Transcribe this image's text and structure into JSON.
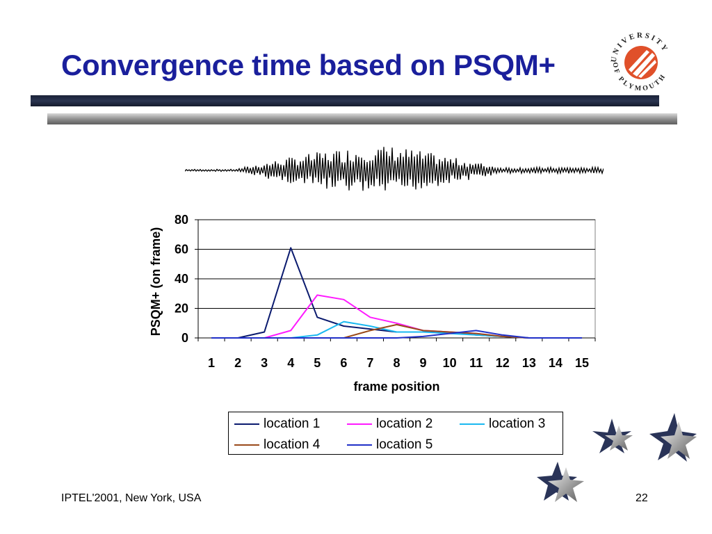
{
  "slide": {
    "title": "Convergence time based on PSQM+",
    "footer_left": "IPTEL'2001, New York, USA",
    "page_number": "22"
  },
  "logo": {
    "text": "UNIVERSITY OF PLYMOUTH",
    "color": "#e0502a"
  },
  "colors": {
    "title": "#1a1f9c",
    "location_1": "#0a1a6e",
    "location_2": "#ff1aff",
    "location_3": "#1ab8f0",
    "location_4": "#9a4a1a",
    "location_5": "#2030c8"
  },
  "chart_data": {
    "type": "line",
    "xlabel": "frame position",
    "ylabel": "PSQM+ (on frame)",
    "ylim": [
      0,
      80
    ],
    "yticks": [
      0,
      20,
      40,
      60,
      80
    ],
    "grid": true,
    "legend_position": "bottom",
    "categories": [
      "1",
      "2",
      "3",
      "4",
      "5",
      "6",
      "7",
      "8",
      "9",
      "10",
      "11",
      "12",
      "13",
      "14",
      "15"
    ],
    "series": [
      {
        "name": "location 1",
        "color": "#0a1a6e",
        "values": [
          0,
          0,
          4,
          61,
          14,
          8,
          6,
          4,
          4,
          4,
          2,
          1,
          0,
          0,
          0
        ]
      },
      {
        "name": "location 2",
        "color": "#ff1aff",
        "values": [
          0,
          0,
          0,
          5,
          29,
          26,
          14,
          10,
          5,
          4,
          3,
          1,
          0,
          0,
          0
        ]
      },
      {
        "name": "location 3",
        "color": "#1ab8f0",
        "values": [
          0,
          0,
          0,
          0,
          2,
          11,
          8,
          4,
          4,
          3,
          2,
          1,
          0,
          0,
          0
        ]
      },
      {
        "name": "location 4",
        "color": "#9a4a1a",
        "values": [
          0,
          0,
          0,
          0,
          0,
          0,
          5,
          9,
          5,
          4,
          3,
          1,
          0,
          0,
          0
        ]
      },
      {
        "name": "location 5",
        "color": "#2030c8",
        "values": [
          0,
          0,
          0,
          0,
          0,
          0,
          0,
          0,
          1,
          3,
          5,
          2,
          0,
          0,
          0
        ]
      }
    ]
  }
}
